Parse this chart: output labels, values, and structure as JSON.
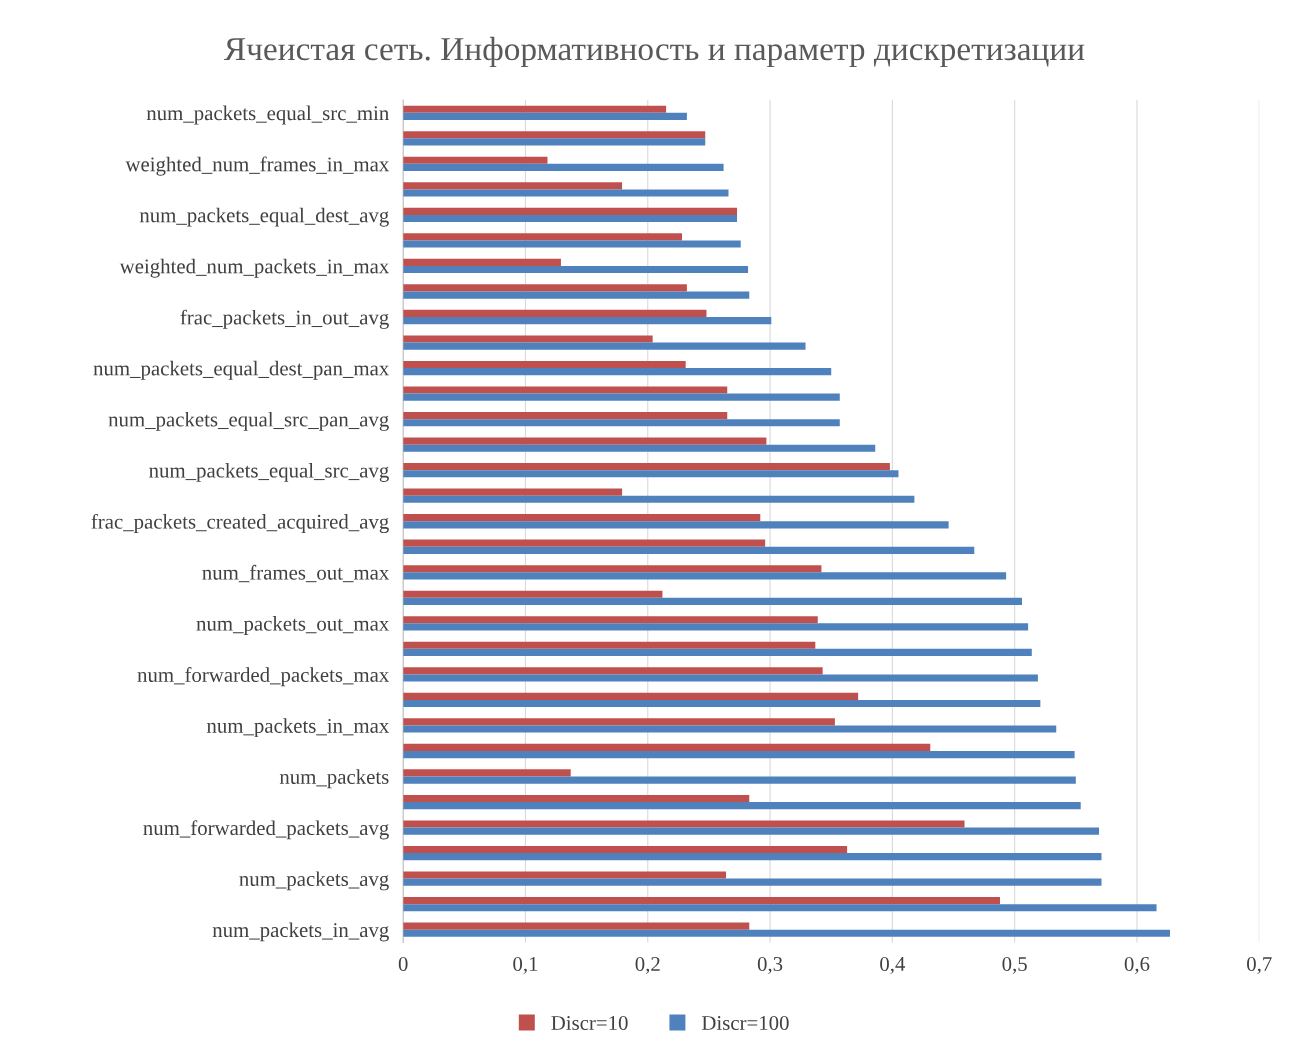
{
  "chart_data": {
    "type": "bar",
    "orientation": "horizontal",
    "title": "Ячеистая сеть. Информативность и параметр дискретизации",
    "categories": [
      "num_packets_equal_src_min",
      null,
      "weighted_num_frames_in_max",
      null,
      "num_packets_equal_dest_avg",
      null,
      "weighted_num_packets_in_max",
      null,
      "frac_packets_in_out_avg",
      null,
      "num_packets_equal_dest_pan_max",
      null,
      "num_packets_equal_src_pan_avg",
      null,
      "num_packets_equal_src_avg",
      null,
      "frac_packets_created_acquired_avg",
      null,
      "num_frames_out_max",
      null,
      "num_packets_out_max",
      null,
      "num_forwarded_packets_max",
      null,
      "num_packets_in_max",
      null,
      "num_packets",
      null,
      "num_forwarded_packets_avg",
      null,
      "num_packets_avg",
      null,
      "num_packets_in_avg"
    ],
    "series": [
      {
        "name": "Discr=10",
        "color": "#c0504d",
        "values": [
          0.215,
          0.247,
          0.118,
          0.179,
          0.273,
          0.228,
          0.129,
          0.232,
          0.248,
          0.204,
          0.231,
          0.265,
          0.265,
          0.297,
          0.398,
          0.179,
          0.292,
          0.296,
          0.342,
          0.212,
          0.339,
          0.337,
          0.343,
          0.372,
          0.353,
          0.431,
          0.137,
          0.283,
          0.459,
          0.363,
          0.264,
          0.488,
          0.283
        ]
      },
      {
        "name": "Discr=100",
        "color": "#4f81bd",
        "values": [
          0.232,
          0.247,
          0.262,
          0.266,
          0.273,
          0.276,
          0.282,
          0.283,
          0.301,
          0.329,
          0.35,
          0.357,
          0.357,
          0.386,
          0.405,
          0.418,
          0.446,
          0.467,
          0.493,
          0.506,
          0.511,
          0.514,
          0.519,
          0.521,
          0.534,
          0.549,
          0.55,
          0.554,
          0.569,
          0.571,
          0.571,
          0.616,
          0.627
        ]
      }
    ],
    "xlim": [
      0,
      0.7
    ],
    "xticks": [
      0,
      {
        "value": 0.1,
        "label": "0,1"
      },
      {
        "value": 0.2,
        "label": "0,2"
      },
      {
        "value": 0.3,
        "label": "0,3"
      },
      {
        "value": 0.4,
        "label": "0,4"
      },
      {
        "value": 0.5,
        "label": "0,5"
      },
      {
        "value": 0.6,
        "label": "0,6"
      },
      {
        "value": 0.7,
        "label": "0,7"
      }
    ],
    "grid": "x",
    "legend": "bottom"
  }
}
